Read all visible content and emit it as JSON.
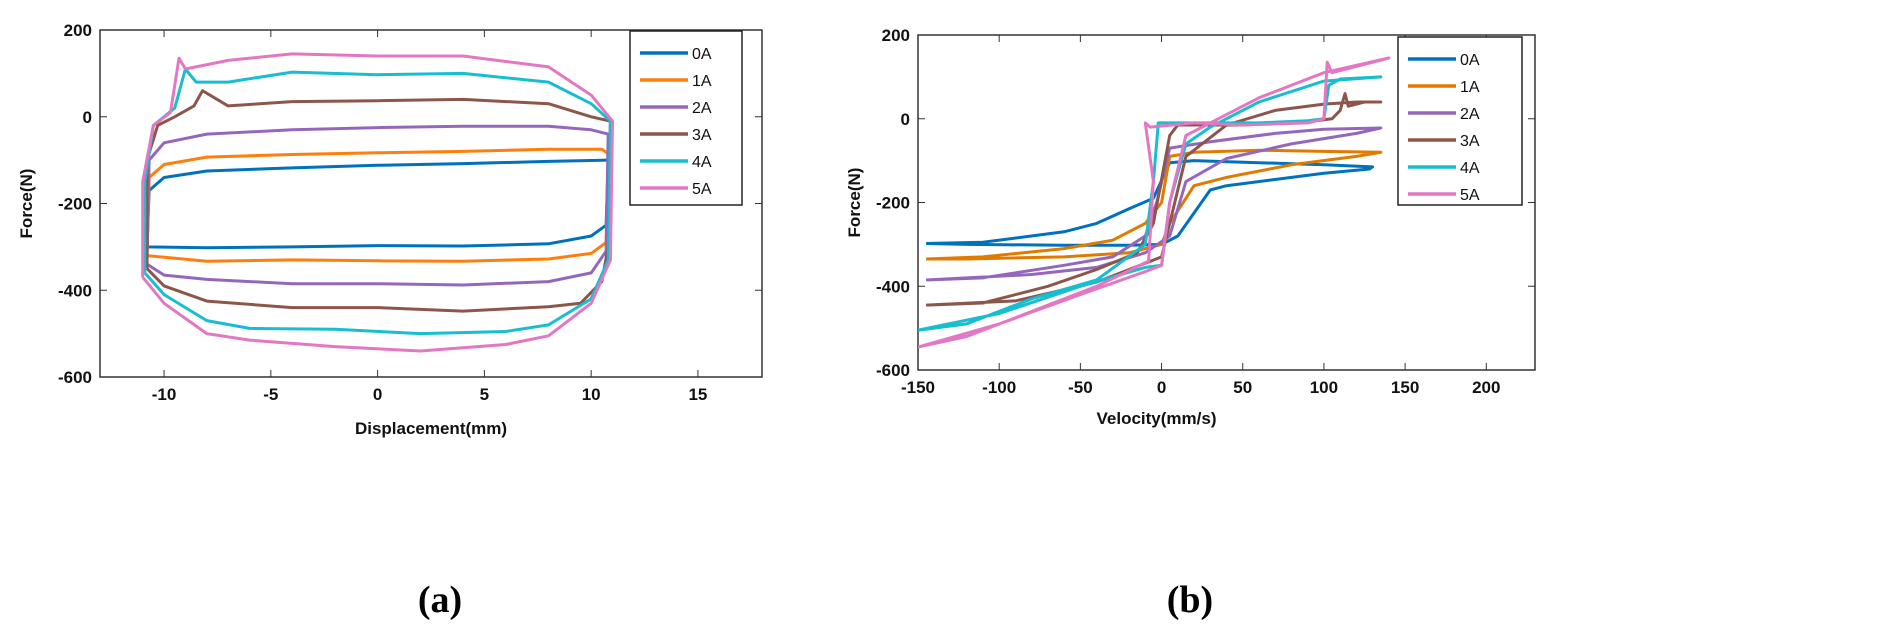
{
  "chart_data": [
    {
      "type": "line",
      "panel_label": "(a)",
      "xlabel": "Displacement(mm)",
      "ylabel": "Force(N)",
      "xlim": [
        -13,
        18
      ],
      "ylim": [
        -600,
        200
      ],
      "xticks": [
        -10,
        -5,
        0,
        5,
        10,
        15
      ],
      "yticks": [
        200,
        0,
        -200,
        -400,
        -600
      ],
      "grid": false,
      "legend_position": "top-right",
      "series": [
        {
          "name": "0A",
          "color": "#0072BD",
          "points": [
            [
              -10.8,
              -300
            ],
            [
              -8,
              -302
            ],
            [
              -4,
              -300
            ],
            [
              0,
              -297
            ],
            [
              4,
              -298
            ],
            [
              8,
              -293
            ],
            [
              10,
              -275
            ],
            [
              10.7,
              -250
            ],
            [
              10.8,
              -100
            ],
            [
              8,
              -103
            ],
            [
              4,
              -108
            ],
            [
              0,
              -112
            ],
            [
              -4,
              -118
            ],
            [
              -8,
              -125
            ],
            [
              -10,
              -140
            ],
            [
              -10.7,
              -170
            ],
            [
              -10.8,
              -300
            ]
          ]
        },
        {
          "name": "1A",
          "color": "#FF7F0E",
          "points": [
            [
              -10.8,
              -320
            ],
            [
              -8,
              -333
            ],
            [
              -4,
              -330
            ],
            [
              0,
              -332
            ],
            [
              4,
              -333
            ],
            [
              8,
              -328
            ],
            [
              10,
              -315
            ],
            [
              10.7,
              -290
            ],
            [
              10.8,
              -85
            ],
            [
              10.5,
              -75
            ],
            [
              8,
              -75
            ],
            [
              4,
              -80
            ],
            [
              0,
              -83
            ],
            [
              -4,
              -87
            ],
            [
              -8,
              -93
            ],
            [
              -10,
              -110
            ],
            [
              -10.7,
              -140
            ],
            [
              -10.8,
              -320
            ]
          ]
        },
        {
          "name": "2A",
          "color": "#9467BD",
          "points": [
            [
              -10.8,
              -340
            ],
            [
              -10,
              -365
            ],
            [
              -8,
              -375
            ],
            [
              -4,
              -385
            ],
            [
              0,
              -385
            ],
            [
              4,
              -388
            ],
            [
              8,
              -380
            ],
            [
              10,
              -360
            ],
            [
              10.7,
              -310
            ],
            [
              10.8,
              -40
            ],
            [
              10,
              -30
            ],
            [
              8,
              -22
            ],
            [
              4,
              -22
            ],
            [
              0,
              -25
            ],
            [
              -4,
              -30
            ],
            [
              -8,
              -40
            ],
            [
              -10,
              -60
            ],
            [
              -10.7,
              -100
            ],
            [
              -10.8,
              -340
            ]
          ]
        },
        {
          "name": "3A",
          "color": "#8C564B",
          "points": [
            [
              -10.8,
              -350
            ],
            [
              -10,
              -390
            ],
            [
              -8,
              -425
            ],
            [
              -4,
              -440
            ],
            [
              0,
              -440
            ],
            [
              4,
              -448
            ],
            [
              8,
              -438
            ],
            [
              9.5,
              -430
            ],
            [
              10.5,
              -380
            ],
            [
              10.8,
              -300
            ],
            [
              10.9,
              -10
            ],
            [
              10,
              0
            ],
            [
              8,
              30
            ],
            [
              4,
              40
            ],
            [
              0,
              37
            ],
            [
              -4,
              35
            ],
            [
              -7,
              25
            ],
            [
              -8.2,
              60
            ],
            [
              -8.6,
              25
            ],
            [
              -9.5,
              0
            ],
            [
              -10.3,
              -20
            ],
            [
              -10.8,
              -100
            ],
            [
              -10.8,
              -350
            ]
          ]
        },
        {
          "name": "4A",
          "color": "#17BECF",
          "points": [
            [
              -10.9,
              -360
            ],
            [
              -10,
              -410
            ],
            [
              -8,
              -470
            ],
            [
              -6,
              -488
            ],
            [
              -2,
              -490
            ],
            [
              2,
              -500
            ],
            [
              6,
              -495
            ],
            [
              8,
              -480
            ],
            [
              10,
              -420
            ],
            [
              10.8,
              -330
            ],
            [
              10.9,
              -10
            ],
            [
              10,
              30
            ],
            [
              8,
              80
            ],
            [
              4,
              100
            ],
            [
              0,
              97
            ],
            [
              -4,
              103
            ],
            [
              -7,
              80
            ],
            [
              -8.5,
              80
            ],
            [
              -9,
              110
            ],
            [
              -9.5,
              20
            ],
            [
              -10.5,
              -20
            ],
            [
              -10.9,
              -150
            ],
            [
              -10.9,
              -360
            ]
          ]
        },
        {
          "name": "5A",
          "color": "#E377C2",
          "points": [
            [
              -11,
              -370
            ],
            [
              -10,
              -430
            ],
            [
              -8,
              -500
            ],
            [
              -6,
              -515
            ],
            [
              -2,
              -530
            ],
            [
              2,
              -540
            ],
            [
              6,
              -525
            ],
            [
              8,
              -505
            ],
            [
              10,
              -430
            ],
            [
              10.9,
              -330
            ],
            [
              11,
              -10
            ],
            [
              10,
              50
            ],
            [
              8,
              115
            ],
            [
              4,
              140
            ],
            [
              0,
              140
            ],
            [
              -4,
              145
            ],
            [
              -7,
              130
            ],
            [
              -9,
              110
            ],
            [
              -9.3,
              135
            ],
            [
              -9.7,
              10
            ],
            [
              -10.5,
              -20
            ],
            [
              -11,
              -150
            ],
            [
              -11,
              -370
            ]
          ]
        }
      ]
    },
    {
      "type": "line",
      "panel_label": "(b)",
      "xlabel": "Velocity(mm/s)",
      "ylabel": "Force(N)",
      "xlim": [
        -150,
        230
      ],
      "ylim": [
        -600,
        200
      ],
      "xticks": [
        -150,
        -100,
        -50,
        0,
        50,
        100,
        150,
        200
      ],
      "yticks": [
        200,
        0,
        -200,
        -400,
        -600
      ],
      "grid": false,
      "legend_position": "top-right",
      "series": [
        {
          "name": "0A",
          "color": "#0072BD",
          "points": [
            [
              -145,
              -298
            ],
            [
              -110,
              -295
            ],
            [
              -60,
              -270
            ],
            [
              -40,
              -250
            ],
            [
              -20,
              -215
            ],
            [
              -5,
              -190
            ],
            [
              5,
              -105
            ],
            [
              20,
              -100
            ],
            [
              60,
              -105
            ],
            [
              100,
              -110
            ],
            [
              130,
              -115
            ],
            [
              128,
              -120
            ],
            [
              100,
              -130
            ],
            [
              40,
              -160
            ],
            [
              30,
              -170
            ],
            [
              10,
              -280
            ],
            [
              0,
              -300
            ],
            [
              -20,
              -302
            ],
            [
              -60,
              -302
            ],
            [
              -120,
              -300
            ],
            [
              -145,
              -298
            ]
          ]
        },
        {
          "name": "1A",
          "color": "#E07B00",
          "points": [
            [
              -145,
              -335
            ],
            [
              -110,
              -330
            ],
            [
              -60,
              -310
            ],
            [
              -30,
              -290
            ],
            [
              -10,
              -250
            ],
            [
              0,
              -200
            ],
            [
              5,
              -90
            ],
            [
              20,
              -80
            ],
            [
              60,
              -75
            ],
            [
              100,
              -78
            ],
            [
              135,
              -80
            ],
            [
              120,
              -90
            ],
            [
              80,
              -110
            ],
            [
              40,
              -140
            ],
            [
              20,
              -160
            ],
            [
              5,
              -250
            ],
            [
              0,
              -300
            ],
            [
              -20,
              -320
            ],
            [
              -60,
              -330
            ],
            [
              -120,
              -335
            ],
            [
              -145,
              -335
            ]
          ]
        },
        {
          "name": "2A",
          "color": "#9467BD",
          "points": [
            [
              -145,
              -385
            ],
            [
              -110,
              -380
            ],
            [
              -60,
              -350
            ],
            [
              -30,
              -330
            ],
            [
              -10,
              -280
            ],
            [
              -3,
              -200
            ],
            [
              5,
              -70
            ],
            [
              30,
              -55
            ],
            [
              70,
              -35
            ],
            [
              100,
              -25
            ],
            [
              135,
              -22
            ],
            [
              120,
              -35
            ],
            [
              80,
              -60
            ],
            [
              40,
              -95
            ],
            [
              15,
              -150
            ],
            [
              5,
              -280
            ],
            [
              -10,
              -320
            ],
            [
              -40,
              -355
            ],
            [
              -80,
              -372
            ],
            [
              -145,
              -385
            ]
          ]
        },
        {
          "name": "3A",
          "color": "#8C564B",
          "points": [
            [
              -145,
              -445
            ],
            [
              -110,
              -440
            ],
            [
              -70,
              -400
            ],
            [
              -40,
              -360
            ],
            [
              -15,
              -320
            ],
            [
              -5,
              -250
            ],
            [
              5,
              -40
            ],
            [
              10,
              -15
            ],
            [
              50,
              -15
            ],
            [
              80,
              -10
            ],
            [
              95,
              -5
            ],
            [
              105,
              0
            ],
            [
              110,
              20
            ],
            [
              113,
              60
            ],
            [
              115,
              30
            ],
            [
              125,
              40
            ],
            [
              135,
              40
            ],
            [
              120,
              40
            ],
            [
              100,
              35
            ],
            [
              70,
              20
            ],
            [
              40,
              -15
            ],
            [
              15,
              -90
            ],
            [
              5,
              -250
            ],
            [
              0,
              -330
            ],
            [
              -40,
              -390
            ],
            [
              -90,
              -435
            ],
            [
              -145,
              -445
            ]
          ]
        },
        {
          "name": "4A",
          "color": "#17BECF",
          "points": [
            [
              -150,
              -505
            ],
            [
              -120,
              -490
            ],
            [
              -80,
              -430
            ],
            [
              -40,
              -385
            ],
            [
              -10,
              -300
            ],
            [
              -5,
              -150
            ],
            [
              -2,
              -10
            ],
            [
              20,
              -10
            ],
            [
              60,
              -10
            ],
            [
              90,
              -5
            ],
            [
              100,
              0
            ],
            [
              103,
              80
            ],
            [
              110,
              95
            ],
            [
              135,
              100
            ],
            [
              100,
              90
            ],
            [
              60,
              40
            ],
            [
              30,
              -20
            ],
            [
              15,
              -60
            ],
            [
              5,
              -200
            ],
            [
              0,
              -350
            ],
            [
              -10,
              -355
            ],
            [
              -50,
              -400
            ],
            [
              -100,
              -465
            ],
            [
              -150,
              -505
            ]
          ]
        },
        {
          "name": "5A",
          "color": "#E377C2",
          "points": [
            [
              -150,
              -545
            ],
            [
              -120,
              -520
            ],
            [
              -80,
              -460
            ],
            [
              -40,
              -400
            ],
            [
              -8,
              -340
            ],
            [
              -5,
              -150
            ],
            [
              -10,
              -10
            ],
            [
              -7,
              -20
            ],
            [
              20,
              -10
            ],
            [
              50,
              -15
            ],
            [
              90,
              -10
            ],
            [
              100,
              0
            ],
            [
              102,
              135
            ],
            [
              105,
              110
            ],
            [
              140,
              145
            ],
            [
              100,
              110
            ],
            [
              60,
              50
            ],
            [
              30,
              -10
            ],
            [
              15,
              -40
            ],
            [
              5,
              -200
            ],
            [
              0,
              -350
            ],
            [
              -10,
              -365
            ],
            [
              -50,
              -420
            ],
            [
              -100,
              -490
            ],
            [
              -150,
              -545
            ]
          ]
        }
      ]
    }
  ]
}
